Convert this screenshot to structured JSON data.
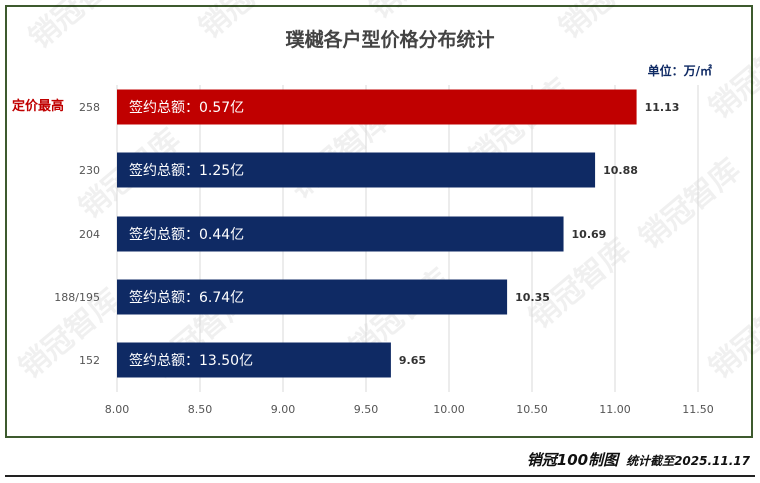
{
  "chart_data": {
    "type": "bar",
    "orientation": "horizontal",
    "title": "璞樾各户型价格分布统计",
    "unit_label": "单位：万/㎡",
    "categories": [
      "258",
      "230",
      "204",
      "188/195",
      "152"
    ],
    "values": [
      11.13,
      10.88,
      10.69,
      10.35,
      9.65
    ],
    "bar_labels": [
      "签约总额：0.57亿",
      "签约总额：1.25亿",
      "签约总额：0.44亿",
      "签约总额：6.74亿",
      "签约总额：13.50亿"
    ],
    "value_labels": [
      "11.13",
      "10.88",
      "10.69",
      "10.35",
      "9.65"
    ],
    "highlight_index": 0,
    "highlight_label": "定价最高",
    "x_ticks": [
      "8.00",
      "8.50",
      "9.00",
      "9.50",
      "10.00",
      "10.50",
      "11.00",
      "11.50"
    ],
    "xlim": [
      8.0,
      11.75
    ],
    "grid": true,
    "colors": {
      "highlight": "#c00000",
      "bar": "#0f2a64",
      "highlight_text": "#c00000"
    }
  },
  "watermark": "销冠智库",
  "footer": {
    "logo": "销冠100制图",
    "note": "统计截至2025.11.17"
  }
}
